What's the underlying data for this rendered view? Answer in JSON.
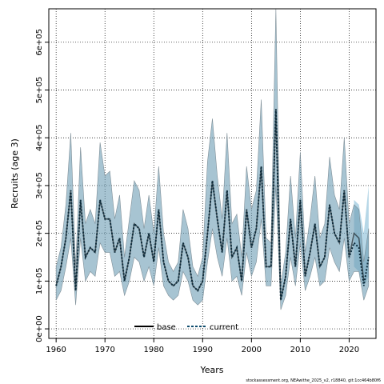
{
  "chart_data": {
    "type": "line",
    "xlabel": "Years",
    "ylabel": "Recruits (age 3)",
    "xlim": [
      1958.5,
      2025.5
    ],
    "ylim": [
      -20000,
      670000
    ],
    "x_ticks": [
      1960,
      1970,
      1980,
      1990,
      2000,
      2010,
      2020
    ],
    "y_ticks": [
      0,
      100000,
      200000,
      300000,
      400000,
      500000,
      600000
    ],
    "y_tick_labels": [
      "0e+00",
      "1e+05",
      "2e+05",
      "3e+05",
      "4e+05",
      "5e+05",
      "6e+05"
    ],
    "grid": true,
    "legend_position": "bottom",
    "legend": [
      "base",
      "current"
    ],
    "caption": "stockassessment.org, NEAwithe_2025_v2, r18840, git:1cc464b80f6",
    "colors": {
      "band": "#6d9cb4",
      "band_edge": "#7f8f98",
      "line": "#000000",
      "projection_band": "#9dc9df"
    },
    "series": [
      {
        "name": "current",
        "x": [
          1960,
          1961,
          1962,
          1963,
          1964,
          1965,
          1966,
          1967,
          1968,
          1969,
          1970,
          1971,
          1972,
          1973,
          1974,
          1975,
          1976,
          1977,
          1978,
          1979,
          1980,
          1981,
          1982,
          1983,
          1984,
          1985,
          1986,
          1987,
          1988,
          1989,
          1990,
          1991,
          1992,
          1993,
          1994,
          1995,
          1996,
          1997,
          1998,
          1999,
          2000,
          2001,
          2002,
          2003,
          2004,
          2005,
          2006,
          2007,
          2008,
          2009,
          2010,
          2011,
          2012,
          2013,
          2014,
          2015,
          2016,
          2017,
          2018,
          2019,
          2020,
          2021,
          2022,
          2023,
          2024
        ],
        "y": [
          90000,
          130000,
          190000,
          290000,
          80000,
          270000,
          150000,
          170000,
          160000,
          270000,
          230000,
          230000,
          160000,
          190000,
          100000,
          150000,
          220000,
          210000,
          150000,
          200000,
          140000,
          250000,
          140000,
          100000,
          90000,
          100000,
          180000,
          150000,
          90000,
          80000,
          100000,
          200000,
          310000,
          230000,
          160000,
          290000,
          150000,
          170000,
          100000,
          250000,
          170000,
          210000,
          340000,
          130000,
          130000,
          460000,
          60000,
          110000,
          230000,
          130000,
          270000,
          110000,
          160000,
          220000,
          130000,
          150000,
          260000,
          200000,
          180000,
          290000,
          150000,
          180000,
          170000,
          90000,
          150000
        ],
        "lower": [
          60000,
          80000,
          130000,
          190000,
          50000,
          190000,
          100000,
          120000,
          110000,
          180000,
          160000,
          160000,
          110000,
          120000,
          70000,
          100000,
          150000,
          140000,
          100000,
          130000,
          90000,
          170000,
          90000,
          70000,
          60000,
          70000,
          120000,
          100000,
          60000,
          50000,
          60000,
          140000,
          210000,
          150000,
          110000,
          190000,
          100000,
          110000,
          70000,
          160000,
          110000,
          140000,
          230000,
          90000,
          90000,
          300000,
          40000,
          70000,
          150000,
          90000,
          180000,
          80000,
          110000,
          150000,
          90000,
          100000,
          170000,
          140000,
          120000,
          190000,
          100000,
          120000,
          120000,
          60000,
          90000
        ],
        "upper": [
          130000,
          170000,
          260000,
          410000,
          130000,
          380000,
          220000,
          250000,
          220000,
          390000,
          320000,
          330000,
          230000,
          280000,
          150000,
          230000,
          310000,
          290000,
          210000,
          280000,
          200000,
          340000,
          200000,
          140000,
          120000,
          140000,
          250000,
          210000,
          130000,
          110000,
          150000,
          350000,
          440000,
          320000,
          230000,
          410000,
          220000,
          240000,
          150000,
          340000,
          250000,
          290000,
          480000,
          190000,
          180000,
          670000,
          90000,
          160000,
          320000,
          190000,
          370000,
          160000,
          230000,
          320000,
          190000,
          220000,
          360000,
          280000,
          250000,
          400000,
          220000,
          260000,
          250000,
          140000,
          210000
        ]
      },
      {
        "name": "base",
        "x": [
          1960,
          1961,
          1962,
          1963,
          1964,
          1965,
          1966,
          1967,
          1968,
          1969,
          1970,
          1971,
          1972,
          1973,
          1974,
          1975,
          1976,
          1977,
          1978,
          1979,
          1980,
          1981,
          1982,
          1983,
          1984,
          1985,
          1986,
          1987,
          1988,
          1989,
          1990,
          1991,
          1992,
          1993,
          1994,
          1995,
          1996,
          1997,
          1998,
          1999,
          2000,
          2001,
          2002,
          2003,
          2004,
          2005,
          2006,
          2007,
          2008,
          2009,
          2010,
          2011,
          2012,
          2013,
          2014,
          2015,
          2016,
          2017,
          2018,
          2019,
          2020,
          2021,
          2022,
          2023
        ],
        "y": [
          90000,
          130000,
          190000,
          290000,
          80000,
          270000,
          150000,
          170000,
          160000,
          270000,
          230000,
          230000,
          160000,
          190000,
          100000,
          150000,
          220000,
          210000,
          150000,
          200000,
          140000,
          250000,
          140000,
          100000,
          90000,
          100000,
          180000,
          150000,
          90000,
          80000,
          100000,
          200000,
          310000,
          230000,
          160000,
          290000,
          150000,
          170000,
          100000,
          250000,
          170000,
          210000,
          340000,
          130000,
          130000,
          460000,
          60000,
          110000,
          230000,
          130000,
          270000,
          110000,
          160000,
          220000,
          130000,
          150000,
          260000,
          200000,
          180000,
          290000,
          150000,
          200000,
          190000,
          100000
        ],
        "projection_x": [
          2021,
          2022,
          2023,
          2024
        ],
        "projection_lower": [
          130000,
          120000,
          90000,
          110000
        ],
        "projection_upper": [
          270000,
          260000,
          200000,
          300000
        ]
      }
    ]
  }
}
